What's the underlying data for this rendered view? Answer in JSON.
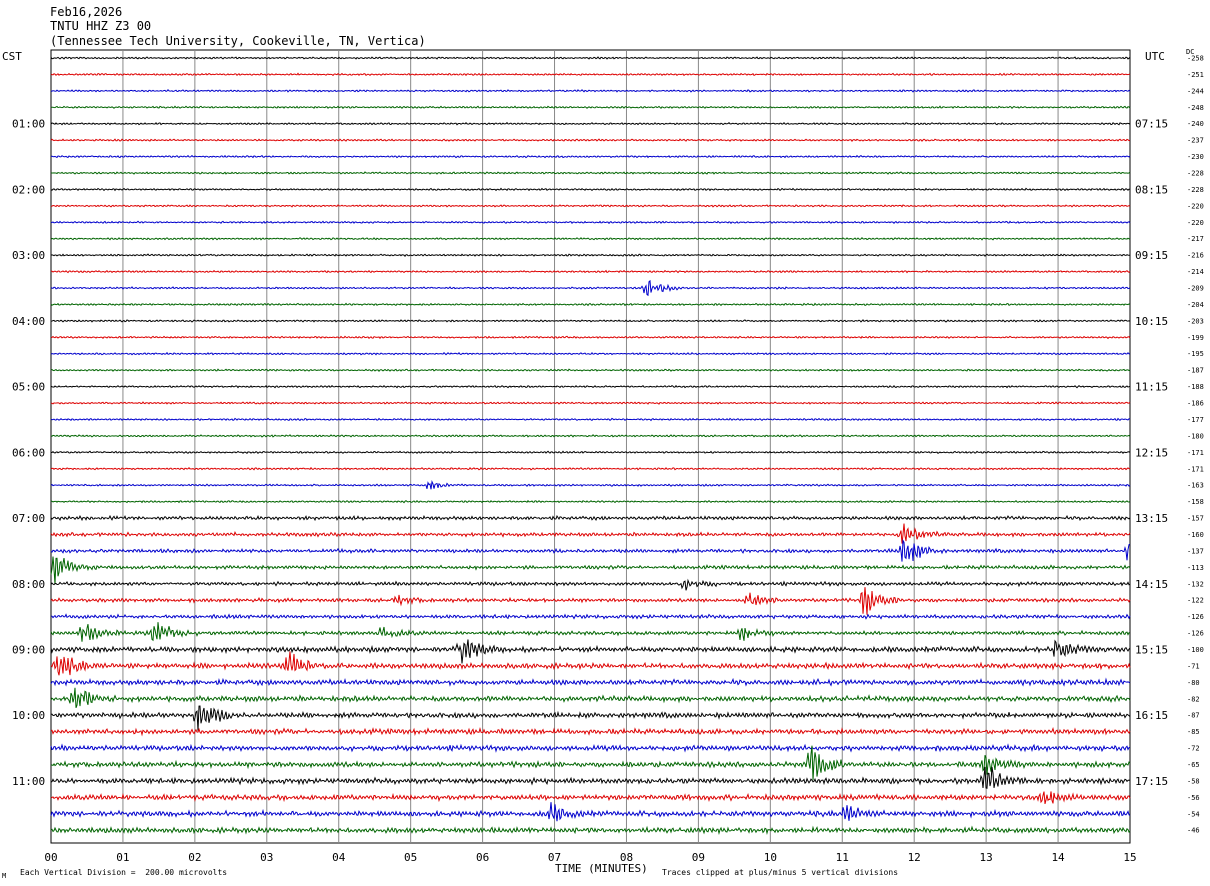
{
  "header": {
    "date": "Feb16,2026",
    "station": "TNTU HHZ Z3 00",
    "location": "(Tennessee Tech University, Cookeville, TN, Vertica)"
  },
  "left_zone": "CST",
  "right_zone": "UTC",
  "dc_label": "DC",
  "footer": {
    "scale_note": "Each Vertical Division =  200.00 microvolts",
    "clip_note": "Traces clipped at plus/minus 5 vertical divisions",
    "watermark": "M"
  },
  "colors": {
    "black": "#000000",
    "red": "#dd0000",
    "blue": "#0000cc",
    "green": "#006400",
    "grid": "#888888"
  },
  "chart_data": {
    "type": "line",
    "xlabel": "TIME (MINUTES)",
    "x_ticks": [
      "00",
      "01",
      "02",
      "03",
      "04",
      "05",
      "06",
      "07",
      "08",
      "09",
      "10",
      "11",
      "12",
      "13",
      "14",
      "15"
    ],
    "xlim": [
      0,
      15
    ],
    "trace_count": 48,
    "trace_colors": [
      "black",
      "red",
      "blue",
      "green"
    ],
    "left_time_labels": [
      "01:00",
      "02:00",
      "03:00",
      "04:00",
      "05:00",
      "06:00",
      "07:00",
      "08:00",
      "09:00",
      "10:00",
      "11:00"
    ],
    "right_time_labels": [
      "07:15",
      "08:15",
      "09:15",
      "10:15",
      "11:15",
      "12:15",
      "13:15",
      "14:15",
      "15:15",
      "16:15",
      "17:15"
    ],
    "dc_offsets": [
      "-258",
      "-251",
      "-244",
      "-248",
      "-240",
      "-237",
      "-230",
      "-228",
      "-228",
      "-220",
      "-220",
      "-217",
      "-216",
      "-214",
      "-209",
      "-204",
      "-203",
      "-199",
      "-195",
      "-187",
      "-188",
      "-186",
      "-177",
      "-180",
      "-171",
      "-171",
      "-163",
      "-158",
      "-157",
      "-160",
      "-137",
      "-113",
      "-132",
      "-122",
      "-126",
      "-126",
      "-100",
      "-71",
      "-80",
      "-82",
      "-87",
      "-85",
      "-72",
      "-65",
      "-58",
      "-56",
      "-54",
      "-46"
    ],
    "events": [
      {
        "trace": 14,
        "minute": 8.28,
        "amp": 1.2
      },
      {
        "trace": 26,
        "minute": 5.25,
        "amp": 0.5
      },
      {
        "trace": 29,
        "minute": 11.85,
        "amp": 1.4
      },
      {
        "trace": 30,
        "minute": 11.85,
        "amp": 2.0
      },
      {
        "trace": 30,
        "minute": 15.0,
        "amp": 2.0
      },
      {
        "trace": 31,
        "minute": 0.05,
        "amp": 1.8
      },
      {
        "trace": 32,
        "minute": 8.8,
        "amp": 0.6
      },
      {
        "trace": 33,
        "minute": 9.7,
        "amp": 1.0
      },
      {
        "trace": 33,
        "minute": 11.3,
        "amp": 1.8
      },
      {
        "trace": 33,
        "minute": 4.8,
        "amp": 0.5
      },
      {
        "trace": 35,
        "minute": 0.45,
        "amp": 1.2
      },
      {
        "trace": 35,
        "minute": 1.45,
        "amp": 1.5
      },
      {
        "trace": 35,
        "minute": 4.6,
        "amp": 0.8
      },
      {
        "trace": 35,
        "minute": 9.6,
        "amp": 0.8
      },
      {
        "trace": 36,
        "minute": 5.7,
        "amp": 1.6
      },
      {
        "trace": 36,
        "minute": 13.95,
        "amp": 1.2
      },
      {
        "trace": 37,
        "minute": 0.1,
        "amp": 1.6
      },
      {
        "trace": 37,
        "minute": 3.3,
        "amp": 1.8
      },
      {
        "trace": 39,
        "minute": 0.3,
        "amp": 2.2
      },
      {
        "trace": 40,
        "minute": 2.05,
        "amp": 2.0
      },
      {
        "trace": 43,
        "minute": 10.55,
        "amp": 2.2
      },
      {
        "trace": 43,
        "minute": 13.0,
        "amp": 1.0
      },
      {
        "trace": 44,
        "minute": 13.0,
        "amp": 2.0
      },
      {
        "trace": 45,
        "minute": 13.8,
        "amp": 0.8
      },
      {
        "trace": 46,
        "minute": 6.95,
        "amp": 1.0
      },
      {
        "trace": 46,
        "minute": 11.05,
        "amp": 0.9
      }
    ]
  }
}
